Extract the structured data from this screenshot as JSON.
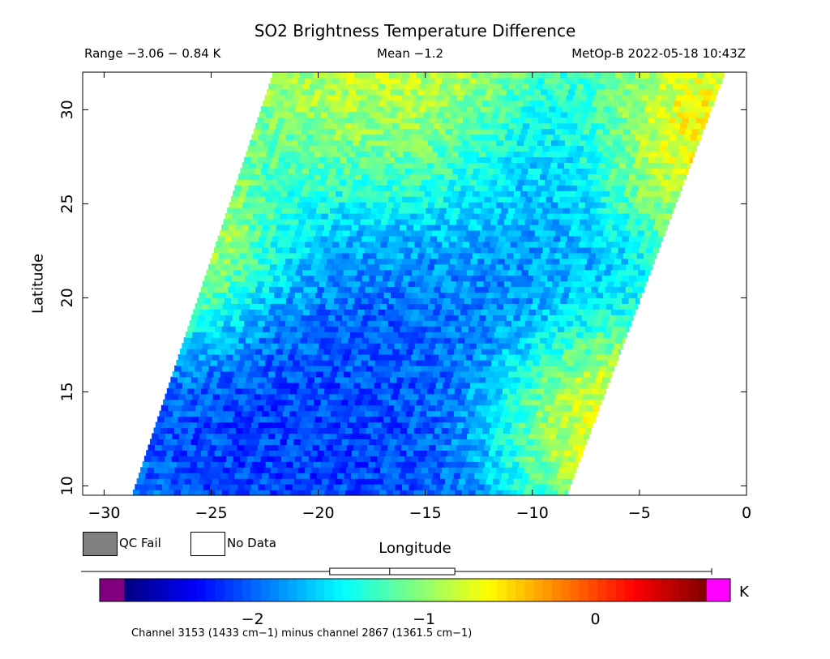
{
  "chart_data": {
    "type": "heatmap",
    "title": "SO2 Brightness Temperature Difference",
    "range_text": "Range −3.06 − 0.84 K",
    "mean_text": "Mean −1.2",
    "satellite_text": "MetOp-B 2022-05-18 10:43Z",
    "xlabel": "Longitude",
    "ylabel": "Latitude",
    "xlim": [
      -31,
      0
    ],
    "ylim": [
      9.5,
      32
    ],
    "xticks": [
      -30,
      -25,
      -20,
      -15,
      -10,
      -5,
      0
    ],
    "yticks": [
      10,
      15,
      20,
      25,
      30
    ],
    "xtick_labels": [
      "−30",
      "−25",
      "−20",
      "−15",
      "−10",
      "−5",
      "0"
    ],
    "ytick_labels": [
      "10",
      "15",
      "20",
      "25",
      "30"
    ],
    "swath": {
      "left_edge": [
        [
          -28.7,
          9.5
        ],
        [
          -22.1,
          32
        ]
      ],
      "right_edge": [
        [
          -8.4,
          9.5
        ],
        [
          -1.0,
          32
        ]
      ]
    },
    "colorbar": {
      "min": -2.75,
      "max": 0.65,
      "ticks": [
        -2,
        -1,
        0
      ],
      "tick_labels": [
        "−2",
        "−1",
        "0"
      ],
      "unit": "K",
      "under_color": "#800080",
      "over_color": "#ff00ff",
      "boxplot": {
        "whisker_low": -3.06,
        "q1": -1.55,
        "median": -1.2,
        "q3": -0.82,
        "whisker_high": 0.84
      }
    },
    "value_regions": [
      {
        "lon": -19.5,
        "lat": 14.0,
        "value": -2.4,
        "spread": 7
      },
      {
        "lon": -16.5,
        "lat": 19.5,
        "value": -1.9,
        "spread": 6
      },
      {
        "lon": -7.5,
        "lat": 26.5,
        "value": -1.9,
        "spread": 3
      },
      {
        "lon": -26.0,
        "lat": 22.5,
        "value": 0.0,
        "spread": 3
      },
      {
        "lon": -7.5,
        "lat": 13.5,
        "value": -0.1,
        "spread": 3
      },
      {
        "lon": -4.0,
        "lat": 27.5,
        "value": -0.2,
        "spread": 2.5
      },
      {
        "lon": -17.0,
        "lat": 29.5,
        "value": -0.6,
        "spread": 4
      }
    ],
    "background_value": -1.0,
    "legend": [
      {
        "label": "QC Fail",
        "color": "#808080"
      },
      {
        "label": "No Data",
        "color": "#ffffff"
      }
    ],
    "footer": "Channel 3153 (1433 cm−1) minus channel 2867 (1361.5 cm−1)"
  }
}
